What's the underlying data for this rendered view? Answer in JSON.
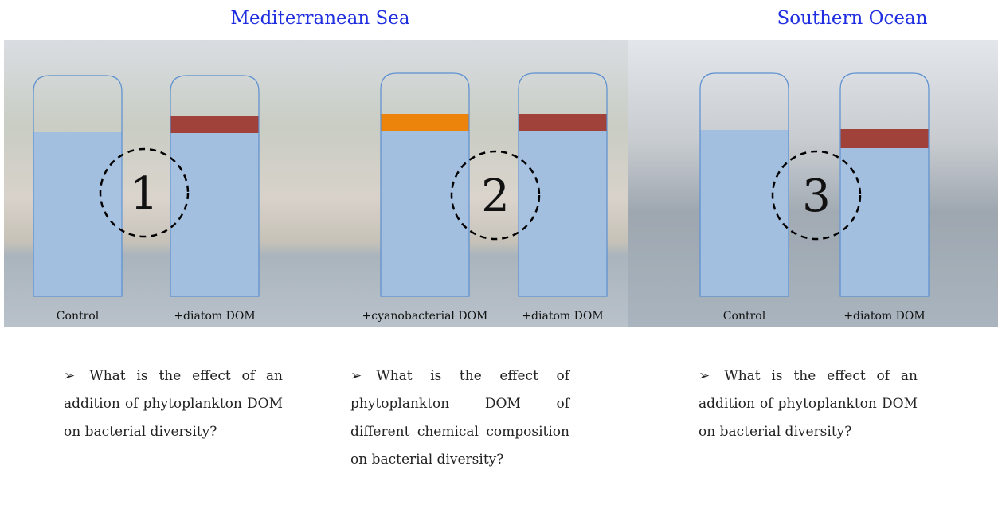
{
  "regions": [
    {
      "title": "Mediterranean Sea"
    },
    {
      "title": "Southern Ocean"
    }
  ],
  "bottles": [
    {
      "label": "Control"
    },
    {
      "label": "+diatom DOM"
    },
    {
      "label": "+cyanobacterial DOM"
    },
    {
      "label": "+diatom DOM"
    },
    {
      "label": "Control"
    },
    {
      "label": "+diatom DOM"
    }
  ],
  "experiments": [
    "1",
    "2",
    "3"
  ],
  "questions": [
    "What is the effect of an addition of phytoplankton DOM on bacterial diversity?",
    "What is the effect of phytoplankton DOM of different chemical composition on bacterial diversity?",
    "What is the effect of an addition of phytoplankton DOM on bacterial diversity?"
  ]
}
